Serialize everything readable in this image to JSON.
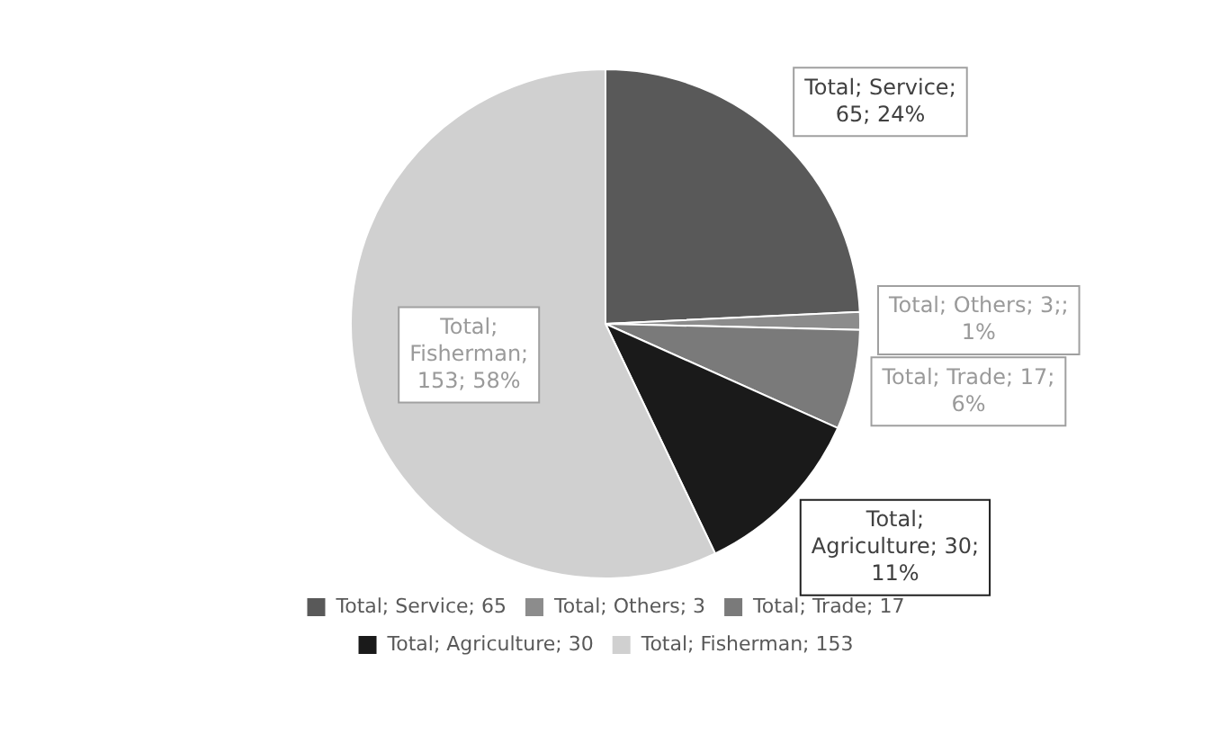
{
  "chart_data": {
    "type": "pie",
    "categories": [
      "Total; Service; 65",
      "Total; Others; 3",
      "Total; Trade; 17",
      "Total; Agriculture; 30",
      "Total; Fisherman; 153"
    ],
    "values": [
      65,
      3,
      17,
      30,
      153
    ],
    "colors": [
      "#595959",
      "#8c8c8c",
      "#7a7a7a",
      "#1a1a1a",
      "#d0d0d0"
    ],
    "value_labels": [
      "Total; Service; 65; 24%",
      "Total; Others; 3;; 1%",
      "Total; Trade; 17; 6%",
      "Total; Agriculture; 30; 11%",
      "Total; Fisherman; 153; 58%"
    ],
    "legend": "bottom"
  }
}
